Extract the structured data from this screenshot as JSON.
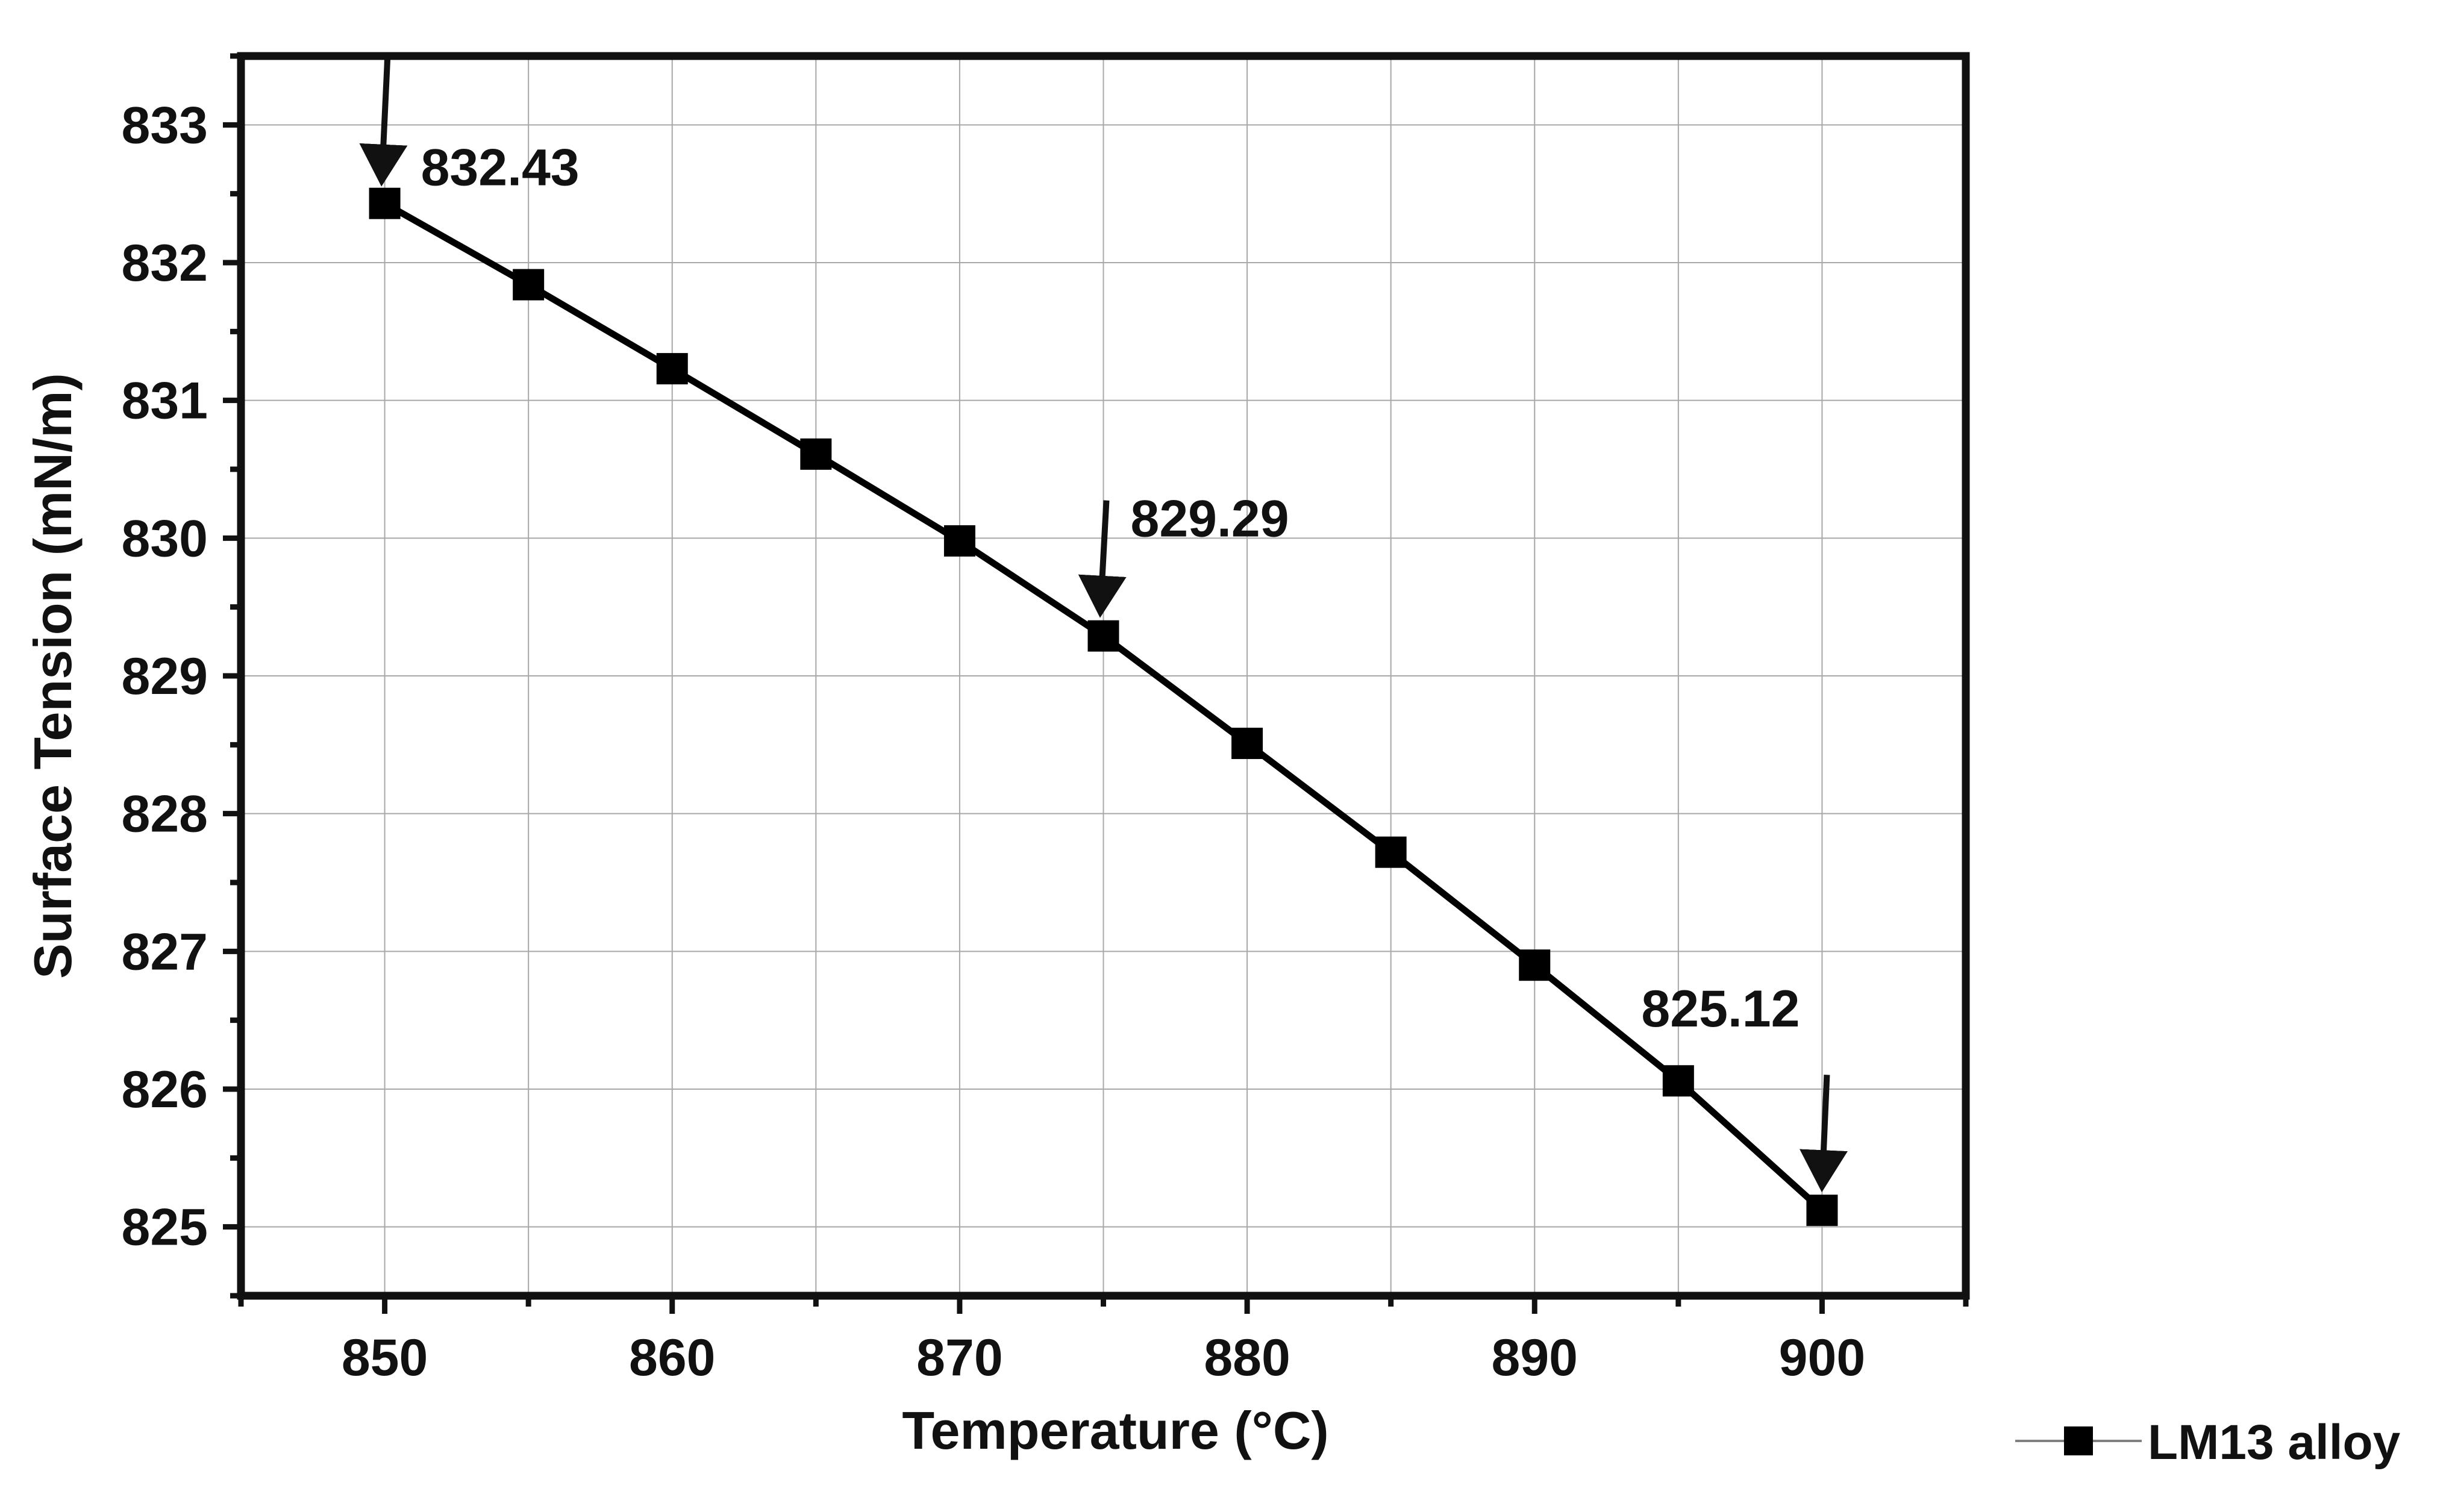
{
  "chart_data": {
    "type": "line",
    "title": "",
    "xlabel": "Temperature (°C)",
    "ylabel": "Surface Tension (mN/m)",
    "xlim": [
      845,
      905
    ],
    "ylim": [
      824.5,
      833.5
    ],
    "xticks": [
      850,
      860,
      870,
      880,
      890,
      900
    ],
    "yticks": [
      825,
      826,
      827,
      828,
      829,
      830,
      831,
      832,
      833
    ],
    "grid": true,
    "legend_position": "bottom-right",
    "series": [
      {
        "name": "LM13 alloy",
        "marker": "square",
        "color": "#000000",
        "x": [
          850,
          855,
          860,
          865,
          870,
          875,
          880,
          885,
          890,
          895,
          900
        ],
        "y": [
          832.43,
          831.84,
          831.23,
          830.61,
          829.98,
          829.29,
          828.51,
          827.72,
          826.9,
          826.06,
          825.12
        ]
      }
    ],
    "annotations": [
      {
        "text": "832.43",
        "x": 850,
        "y": 832.43
      },
      {
        "text": "829.29",
        "x": 875,
        "y": 829.29
      },
      {
        "text": "825.12",
        "x": 900,
        "y": 825.12
      }
    ]
  }
}
